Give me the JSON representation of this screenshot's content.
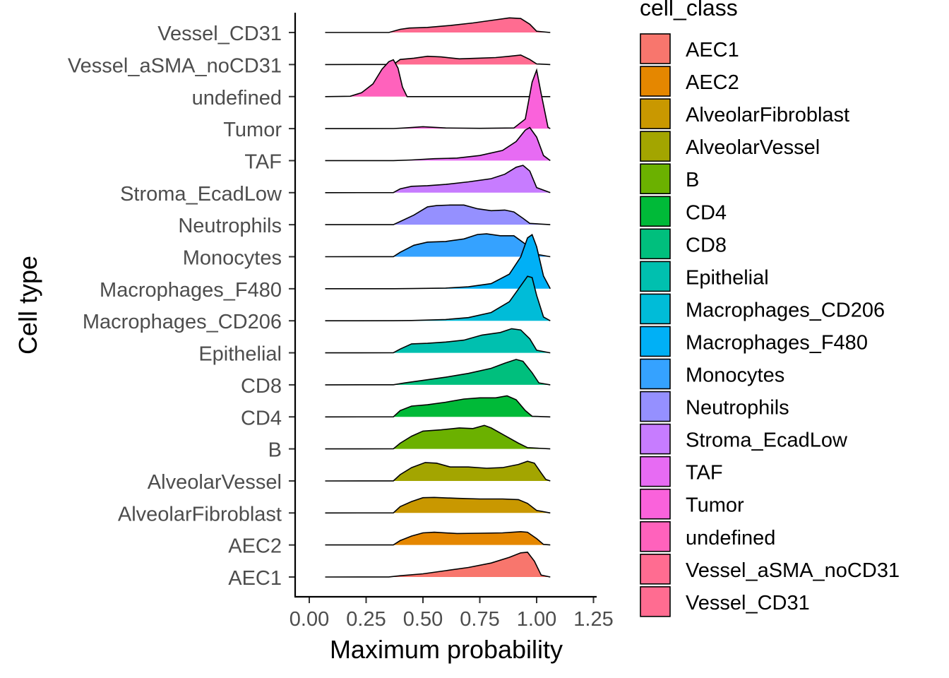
{
  "chart_data": {
    "type": "ridgeline",
    "title": "",
    "xlabel": "Maximum probability",
    "ylabel": "Cell type",
    "xlim": [
      -0.05,
      1.27
    ],
    "x_ticks": [
      0.0,
      0.25,
      0.5,
      0.75,
      1.0,
      1.25
    ],
    "x_tick_labels": [
      "0.00",
      "0.25",
      "0.50",
      "0.75",
      "1.00",
      "1.25"
    ],
    "grid": false,
    "legend": {
      "title": "cell_class",
      "placement": "right"
    },
    "series": [
      {
        "name": "AEC1",
        "color": "#F8766D",
        "x_range": [
          0.07,
          1.06
        ],
        "density": [
          [
            0.07,
            0
          ],
          [
            0.35,
            0.002
          ],
          [
            0.4,
            0.04
          ],
          [
            0.5,
            0.1
          ],
          [
            0.6,
            0.2
          ],
          [
            0.7,
            0.3
          ],
          [
            0.8,
            0.44
          ],
          [
            0.88,
            0.62
          ],
          [
            0.93,
            0.76
          ],
          [
            0.96,
            0.78
          ],
          [
            0.99,
            0.5
          ],
          [
            1.02,
            0.06
          ],
          [
            1.06,
            0
          ]
        ]
      },
      {
        "name": "AEC2",
        "color": "#E58700",
        "x_range": [
          0.07,
          1.06
        ],
        "density": [
          [
            0.07,
            0
          ],
          [
            0.37,
            0.002
          ],
          [
            0.4,
            0.14
          ],
          [
            0.45,
            0.28
          ],
          [
            0.5,
            0.38
          ],
          [
            0.55,
            0.4
          ],
          [
            0.65,
            0.36
          ],
          [
            0.75,
            0.37
          ],
          [
            0.85,
            0.38
          ],
          [
            0.93,
            0.42
          ],
          [
            0.96,
            0.4
          ],
          [
            1.0,
            0.2
          ],
          [
            1.03,
            0.02
          ],
          [
            1.06,
            0
          ]
        ]
      },
      {
        "name": "AlveolarFibroblast",
        "color": "#C99800",
        "x_range": [
          0.07,
          1.06
        ],
        "density": [
          [
            0.07,
            0
          ],
          [
            0.37,
            0.002
          ],
          [
            0.4,
            0.2
          ],
          [
            0.45,
            0.36
          ],
          [
            0.5,
            0.48
          ],
          [
            0.55,
            0.49
          ],
          [
            0.65,
            0.46
          ],
          [
            0.75,
            0.44
          ],
          [
            0.85,
            0.44
          ],
          [
            0.92,
            0.42
          ],
          [
            0.96,
            0.3
          ],
          [
            1.0,
            0.08
          ],
          [
            1.06,
            0
          ]
        ]
      },
      {
        "name": "AlveolarVessel",
        "color": "#A3A500",
        "x_range": [
          0.07,
          1.06
        ],
        "density": [
          [
            0.07,
            0
          ],
          [
            0.37,
            0.002
          ],
          [
            0.4,
            0.2
          ],
          [
            0.45,
            0.42
          ],
          [
            0.51,
            0.58
          ],
          [
            0.56,
            0.56
          ],
          [
            0.62,
            0.44
          ],
          [
            0.7,
            0.44
          ],
          [
            0.78,
            0.4
          ],
          [
            0.85,
            0.42
          ],
          [
            0.92,
            0.52
          ],
          [
            0.96,
            0.62
          ],
          [
            0.99,
            0.56
          ],
          [
            1.02,
            0.25
          ],
          [
            1.04,
            0.05
          ],
          [
            1.06,
            0
          ]
        ]
      },
      {
        "name": "B",
        "color": "#6BB100",
        "x_range": [
          0.07,
          1.06
        ],
        "density": [
          [
            0.07,
            0
          ],
          [
            0.37,
            0.002
          ],
          [
            0.4,
            0.18
          ],
          [
            0.45,
            0.4
          ],
          [
            0.5,
            0.56
          ],
          [
            0.58,
            0.6
          ],
          [
            0.66,
            0.66
          ],
          [
            0.72,
            0.64
          ],
          [
            0.77,
            0.74
          ],
          [
            0.8,
            0.66
          ],
          [
            0.86,
            0.42
          ],
          [
            0.92,
            0.18
          ],
          [
            0.96,
            0.04
          ],
          [
            1.06,
            0
          ]
        ]
      },
      {
        "name": "CD4",
        "color": "#00BA38",
        "x_range": [
          0.07,
          1.06
        ],
        "density": [
          [
            0.07,
            0
          ],
          [
            0.37,
            0.002
          ],
          [
            0.4,
            0.2
          ],
          [
            0.45,
            0.34
          ],
          [
            0.52,
            0.38
          ],
          [
            0.6,
            0.46
          ],
          [
            0.68,
            0.56
          ],
          [
            0.75,
            0.6
          ],
          [
            0.82,
            0.6
          ],
          [
            0.87,
            0.66
          ],
          [
            0.91,
            0.54
          ],
          [
            0.95,
            0.2
          ],
          [
            0.98,
            0.02
          ],
          [
            1.06,
            0
          ]
        ]
      },
      {
        "name": "CD8",
        "color": "#00BF7D",
        "x_range": [
          0.07,
          1.06
        ],
        "density": [
          [
            0.07,
            0
          ],
          [
            0.37,
            0.002
          ],
          [
            0.42,
            0.06
          ],
          [
            0.5,
            0.14
          ],
          [
            0.6,
            0.24
          ],
          [
            0.7,
            0.36
          ],
          [
            0.8,
            0.52
          ],
          [
            0.86,
            0.68
          ],
          [
            0.91,
            0.8
          ],
          [
            0.94,
            0.74
          ],
          [
            0.98,
            0.38
          ],
          [
            1.01,
            0.06
          ],
          [
            1.06,
            0
          ]
        ]
      },
      {
        "name": "Epithelial",
        "color": "#00C0AF",
        "x_range": [
          0.07,
          1.06
        ],
        "density": [
          [
            0.07,
            0
          ],
          [
            0.37,
            0.002
          ],
          [
            0.4,
            0.12
          ],
          [
            0.45,
            0.28
          ],
          [
            0.52,
            0.3
          ],
          [
            0.6,
            0.34
          ],
          [
            0.68,
            0.4
          ],
          [
            0.76,
            0.56
          ],
          [
            0.84,
            0.64
          ],
          [
            0.89,
            0.76
          ],
          [
            0.93,
            0.72
          ],
          [
            0.97,
            0.44
          ],
          [
            1.0,
            0.08
          ],
          [
            1.06,
            0
          ]
        ]
      },
      {
        "name": "Macrophages_CD206",
        "color": "#00BCD8",
        "x_range": [
          0.07,
          1.06
        ],
        "density": [
          [
            0.07,
            0
          ],
          [
            0.37,
            0.002
          ],
          [
            0.45,
            0.01
          ],
          [
            0.6,
            0.04
          ],
          [
            0.7,
            0.1
          ],
          [
            0.8,
            0.26
          ],
          [
            0.88,
            0.6
          ],
          [
            0.93,
            1.1
          ],
          [
            0.96,
            1.4
          ],
          [
            0.98,
            1.36
          ],
          [
            1.0,
            0.8
          ],
          [
            1.03,
            0.12
          ],
          [
            1.06,
            0
          ]
        ]
      },
      {
        "name": "Macrophages_F480",
        "color": "#00B0F6",
        "x_range": [
          0.07,
          1.06
        ],
        "density": [
          [
            0.07,
            0
          ],
          [
            0.37,
            0.002
          ],
          [
            0.45,
            0.005
          ],
          [
            0.6,
            0.02
          ],
          [
            0.7,
            0.06
          ],
          [
            0.8,
            0.16
          ],
          [
            0.88,
            0.46
          ],
          [
            0.93,
            1.0
          ],
          [
            0.96,
            1.6
          ],
          [
            0.98,
            1.7
          ],
          [
            1.0,
            1.32
          ],
          [
            1.03,
            0.4
          ],
          [
            1.06,
            0
          ]
        ]
      },
      {
        "name": "Monocytes",
        "color": "#35A2FF",
        "x_range": [
          0.07,
          1.06
        ],
        "density": [
          [
            0.07,
            0
          ],
          [
            0.37,
            0.002
          ],
          [
            0.4,
            0.14
          ],
          [
            0.46,
            0.36
          ],
          [
            0.52,
            0.46
          ],
          [
            0.6,
            0.48
          ],
          [
            0.68,
            0.56
          ],
          [
            0.74,
            0.7
          ],
          [
            0.78,
            0.72
          ],
          [
            0.84,
            0.66
          ],
          [
            0.9,
            0.66
          ],
          [
            0.95,
            0.4
          ],
          [
            0.98,
            0.1
          ],
          [
            1.06,
            0
          ]
        ]
      },
      {
        "name": "Neutrophils",
        "color": "#9590FF",
        "x_range": [
          0.07,
          1.06
        ],
        "density": [
          [
            0.07,
            0
          ],
          [
            0.37,
            0.002
          ],
          [
            0.4,
            0.1
          ],
          [
            0.46,
            0.3
          ],
          [
            0.52,
            0.56
          ],
          [
            0.56,
            0.6
          ],
          [
            0.62,
            0.62
          ],
          [
            0.68,
            0.62
          ],
          [
            0.74,
            0.5
          ],
          [
            0.8,
            0.44
          ],
          [
            0.86,
            0.46
          ],
          [
            0.9,
            0.4
          ],
          [
            0.94,
            0.2
          ],
          [
            0.97,
            0.04
          ],
          [
            1.06,
            0
          ]
        ]
      },
      {
        "name": "Stroma_EcadLow",
        "color": "#C77CFF",
        "x_range": [
          0.07,
          1.06
        ],
        "density": [
          [
            0.07,
            0
          ],
          [
            0.37,
            0.002
          ],
          [
            0.4,
            0.12
          ],
          [
            0.45,
            0.2
          ],
          [
            0.52,
            0.22
          ],
          [
            0.6,
            0.26
          ],
          [
            0.7,
            0.34
          ],
          [
            0.8,
            0.44
          ],
          [
            0.86,
            0.58
          ],
          [
            0.91,
            0.8
          ],
          [
            0.94,
            0.86
          ],
          [
            0.97,
            0.68
          ],
          [
            1.0,
            0.16
          ],
          [
            1.06,
            0
          ]
        ]
      },
      {
        "name": "TAF",
        "color": "#E76BF3",
        "x_range": [
          0.07,
          1.06
        ],
        "density": [
          [
            0.07,
            0
          ],
          [
            0.37,
            0.002
          ],
          [
            0.45,
            0.02
          ],
          [
            0.55,
            0.06
          ],
          [
            0.65,
            0.08
          ],
          [
            0.75,
            0.16
          ],
          [
            0.85,
            0.32
          ],
          [
            0.91,
            0.6
          ],
          [
            0.95,
            0.96
          ],
          [
            0.97,
            1.04
          ],
          [
            1.0,
            0.74
          ],
          [
            1.03,
            0.16
          ],
          [
            1.06,
            0
          ]
        ]
      },
      {
        "name": "Tumor",
        "color": "#FA62DB",
        "x_range": [
          0.07,
          1.06
        ],
        "density": [
          [
            0.07,
            0
          ],
          [
            0.37,
            0.002
          ],
          [
            0.42,
            0.02
          ],
          [
            0.5,
            0.06
          ],
          [
            0.6,
            0.02
          ],
          [
            0.75,
            0.01
          ],
          [
            0.9,
            0.02
          ],
          [
            0.95,
            0.3
          ],
          [
            0.98,
            1.46
          ],
          [
            1.0,
            1.84
          ],
          [
            1.02,
            1.1
          ],
          [
            1.05,
            0.04
          ],
          [
            1.06,
            0
          ]
        ]
      },
      {
        "name": "undefined",
        "color": "#FF62BC",
        "x_range": [
          0.07,
          1.06
        ],
        "density": [
          [
            0.07,
            0
          ],
          [
            0.18,
            0.01
          ],
          [
            0.23,
            0.12
          ],
          [
            0.28,
            0.4
          ],
          [
            0.32,
            0.86
          ],
          [
            0.35,
            1.1
          ],
          [
            0.37,
            1.16
          ],
          [
            0.39,
            0.9
          ],
          [
            0.41,
            0.3
          ],
          [
            0.43,
            0
          ],
          [
            1.06,
            0
          ]
        ]
      },
      {
        "name": "Vessel_aSMA_noCD31",
        "color": "#FF6C91",
        "x_range": [
          0.07,
          1.06
        ],
        "density": [
          [
            0.07,
            0
          ],
          [
            0.37,
            0.002
          ],
          [
            0.4,
            0.16
          ],
          [
            0.46,
            0.2
          ],
          [
            0.52,
            0.26
          ],
          [
            0.58,
            0.24
          ],
          [
            0.66,
            0.18
          ],
          [
            0.74,
            0.2
          ],
          [
            0.82,
            0.22
          ],
          [
            0.88,
            0.26
          ],
          [
            0.93,
            0.3
          ],
          [
            0.97,
            0.16
          ],
          [
            1.0,
            0.02
          ],
          [
            1.06,
            0
          ]
        ]
      },
      {
        "name": "Vessel_CD31",
        "color": "#FF6C91",
        "x_range": [
          0.07,
          1.06
        ],
        "density": [
          [
            0.07,
            0
          ],
          [
            0.35,
            0.002
          ],
          [
            0.4,
            0.1
          ],
          [
            0.44,
            0.14
          ],
          [
            0.52,
            0.16
          ],
          [
            0.62,
            0.22
          ],
          [
            0.72,
            0.3
          ],
          [
            0.82,
            0.4
          ],
          [
            0.88,
            0.46
          ],
          [
            0.93,
            0.44
          ],
          [
            0.97,
            0.26
          ],
          [
            1.0,
            0.04
          ],
          [
            1.06,
            0
          ]
        ]
      }
    ]
  }
}
